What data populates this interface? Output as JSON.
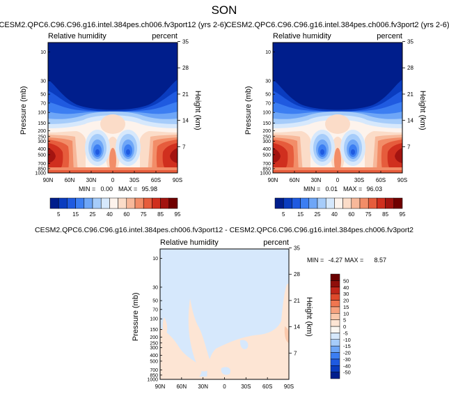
{
  "figure": {
    "title": "SON"
  },
  "palette": {
    "rh": [
      "#001e8c",
      "#0a3cbf",
      "#1f5ae0",
      "#3c7ef2",
      "#6ea6f7",
      "#a6ccfa",
      "#d6e8fc",
      "#fdf3ec",
      "#fbdcc8",
      "#f7b89a",
      "#f28d68",
      "#e65c3c",
      "#d02f1e",
      "#a31410",
      "#700000"
    ],
    "diff": [
      "#001e8c",
      "#0a3cbf",
      "#1f5ae0",
      "#3c7ef2",
      "#6ea6f7",
      "#a6ccfa",
      "#d6e8fc",
      "#fbf7f2",
      "#fde5d4",
      "#fbc9ac",
      "#f7a27f",
      "#f07650",
      "#de4a2c",
      "#c0261a",
      "#8f0e0a",
      "#6a0000"
    ]
  },
  "chart_data": [
    {
      "type": "heatmap",
      "title": "CESM2.QPC6.C96.C96.g16.intel.384pes.ch006.fv3port12 (yrs 2-6)",
      "left_label": "Relative humidity",
      "right_label": "percent",
      "ylabel": "Pressure (mb)",
      "y2label": "Height (km)",
      "x_ticks": [
        "90N",
        "60N",
        "30N",
        "0",
        "30S",
        "60S",
        "90S"
      ],
      "y_ticks": [
        "10",
        "30",
        "50",
        "70",
        "100",
        "150",
        "200",
        "250",
        "300",
        "400",
        "500",
        "700",
        "850",
        "1000"
      ],
      "y2_ticks": [
        "35",
        "28",
        "21",
        "14",
        "7"
      ],
      "min_label": "MIN =",
      "min_value": "0.00",
      "max_label": "MAX =",
      "max_value": "95.98",
      "colorbar_labels": [
        "5",
        "15",
        "25",
        "40",
        "60",
        "75",
        "85",
        "95"
      ]
    },
    {
      "type": "heatmap",
      "title": "CESM2.QPC6.C96.C96.g16.intel.384pes.ch006.fv3port2 (yrs 2-6)",
      "left_label": "Relative humidity",
      "right_label": "percent",
      "ylabel": "Pressure (mb)",
      "y2label": "Height (km)",
      "x_ticks": [
        "90N",
        "60N",
        "30N",
        "0",
        "30S",
        "60S",
        "90S"
      ],
      "y_ticks": [
        "10",
        "30",
        "50",
        "70",
        "100",
        "150",
        "200",
        "250",
        "300",
        "400",
        "500",
        "700",
        "850",
        "1000"
      ],
      "y2_ticks": [
        "35",
        "28",
        "21",
        "14",
        "7"
      ],
      "min_label": "MIN =",
      "min_value": "0.01",
      "max_label": "MAX =",
      "max_value": "96.03",
      "colorbar_labels": [
        "5",
        "15",
        "25",
        "40",
        "60",
        "75",
        "85",
        "95"
      ]
    },
    {
      "type": "heatmap",
      "title": "CESM2.QPC6.C96.C96.g16.intel.384pes.ch006.fv3port12 - CESM2.QPC6.C96.C96.g16.intel.384pes.ch006.fv3port2",
      "left_label": "Relative humidity",
      "right_label": "percent",
      "ylabel": "Pressure (mb)",
      "y2label": "Height (km)",
      "x_ticks": [
        "90N",
        "60N",
        "30N",
        "0",
        "30S",
        "60S",
        "90S"
      ],
      "y_ticks": [
        "10",
        "30",
        "50",
        "70",
        "100",
        "150",
        "200",
        "250",
        "300",
        "400",
        "500",
        "700",
        "850",
        "1000"
      ],
      "y2_ticks": [
        "35",
        "28",
        "21",
        "14",
        "7"
      ],
      "min_label": "MIN =",
      "min_value": "-4.27",
      "max_label": "MAX =",
      "max_value": "8.57",
      "colorbar_labels": [
        "50",
        "40",
        "30",
        "20",
        "15",
        "10",
        "5",
        "0",
        "-5",
        "-10",
        "-15",
        "-20",
        "-30",
        "-40",
        "-50"
      ]
    }
  ]
}
